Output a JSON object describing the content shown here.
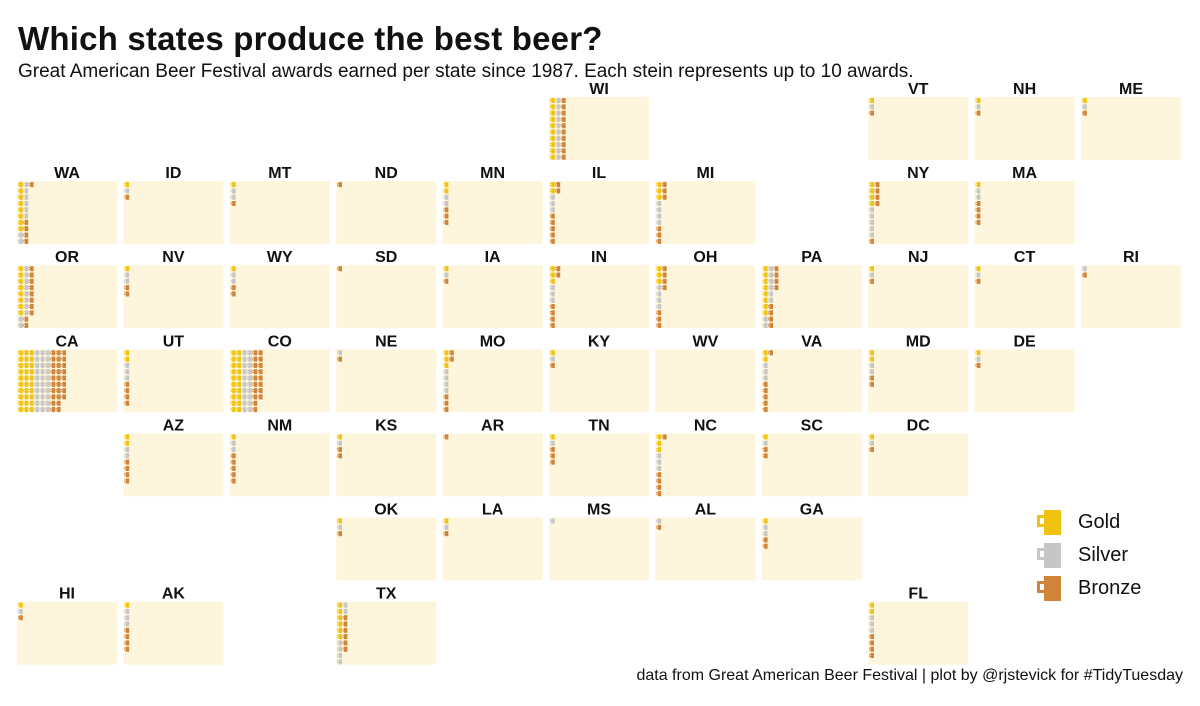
{
  "title": "Which states produce the best beer?",
  "subtitle": "Great American Beer Festival awards earned per state since 1987. Each stein represents up to 10 awards.",
  "caption": "data from Great American Beer Festival | plot by @rjstevick for #TidyTuesday",
  "colors": {
    "gold": "#f0c30f",
    "silver": "#c6c6c6",
    "bronze": "#d0843a",
    "tile": "#fef6dc",
    "stein_handle_hole": "#ffffff"
  },
  "legend": [
    {
      "key": "gold",
      "label": "Gold"
    },
    {
      "key": "silver",
      "label": "Silver"
    },
    {
      "key": "bronze",
      "label": "Bronze"
    }
  ],
  "chart_data": {
    "type": "waffle tile map",
    "unit": "steins (each up to 10 awards)",
    "medals": [
      "gold",
      "silver",
      "bronze"
    ],
    "states": [
      {
        "state": "WI",
        "row": 0,
        "col": 5,
        "gold": 10,
        "silver": 10,
        "bronze": 10
      },
      {
        "state": "VT",
        "row": 0,
        "col": 8,
        "gold": 1,
        "silver": 1,
        "bronze": 1
      },
      {
        "state": "NH",
        "row": 0,
        "col": 9,
        "gold": 1,
        "silver": 1,
        "bronze": 1
      },
      {
        "state": "ME",
        "row": 0,
        "col": 10,
        "gold": 1,
        "silver": 1,
        "bronze": 1
      },
      {
        "state": "WA",
        "row": 1,
        "col": 0,
        "gold": 8,
        "silver": 8,
        "bronze": 5
      },
      {
        "state": "ID",
        "row": 1,
        "col": 1,
        "gold": 1,
        "silver": 1,
        "bronze": 1
      },
      {
        "state": "MT",
        "row": 1,
        "col": 2,
        "gold": 1,
        "silver": 2,
        "bronze": 1
      },
      {
        "state": "ND",
        "row": 1,
        "col": 3,
        "gold": 0,
        "silver": 0,
        "bronze": 1
      },
      {
        "state": "MN",
        "row": 1,
        "col": 4,
        "gold": 2,
        "silver": 2,
        "bronze": 3
      },
      {
        "state": "IL",
        "row": 1,
        "col": 5,
        "gold": 2,
        "silver": 3,
        "bronze": 7
      },
      {
        "state": "MI",
        "row": 1,
        "col": 6,
        "gold": 3,
        "silver": 4,
        "bronze": 6
      },
      {
        "state": "NY",
        "row": 1,
        "col": 8,
        "gold": 4,
        "silver": 5,
        "bronze": 5
      },
      {
        "state": "MA",
        "row": 1,
        "col": 9,
        "gold": 1,
        "silver": 2,
        "bronze": 4
      },
      {
        "state": "OR",
        "row": 2,
        "col": 0,
        "gold": 8,
        "silver": 10,
        "bronze": 10
      },
      {
        "state": "NV",
        "row": 2,
        "col": 1,
        "gold": 1,
        "silver": 2,
        "bronze": 2
      },
      {
        "state": "WY",
        "row": 2,
        "col": 2,
        "gold": 1,
        "silver": 2,
        "bronze": 2
      },
      {
        "state": "SD",
        "row": 2,
        "col": 3,
        "gold": 0,
        "silver": 0,
        "bronze": 1
      },
      {
        "state": "IA",
        "row": 2,
        "col": 4,
        "gold": 1,
        "silver": 1,
        "bronze": 1
      },
      {
        "state": "IN",
        "row": 2,
        "col": 5,
        "gold": 3,
        "silver": 3,
        "bronze": 6
      },
      {
        "state": "OH",
        "row": 2,
        "col": 6,
        "gold": 3,
        "silver": 4,
        "bronze": 7
      },
      {
        "state": "PA",
        "row": 2,
        "col": 7,
        "gold": 8,
        "silver": 8,
        "bronze": 8
      },
      {
        "state": "NJ",
        "row": 2,
        "col": 8,
        "gold": 1,
        "silver": 1,
        "bronze": 1
      },
      {
        "state": "CT",
        "row": 2,
        "col": 9,
        "gold": 1,
        "silver": 1,
        "bronze": 1
      },
      {
        "state": "RI",
        "row": 2,
        "col": 10,
        "gold": 0,
        "silver": 1,
        "bronze": 1
      },
      {
        "state": "CA",
        "row": 3,
        "col": 0,
        "gold": 30,
        "silver": 30,
        "bronze": 28
      },
      {
        "state": "UT",
        "row": 3,
        "col": 1,
        "gold": 2,
        "silver": 3,
        "bronze": 4
      },
      {
        "state": "CO",
        "row": 3,
        "col": 2,
        "gold": 20,
        "silver": 20,
        "bronze": 18
      },
      {
        "state": "NE",
        "row": 3,
        "col": 3,
        "gold": 0,
        "silver": 1,
        "bronze": 1
      },
      {
        "state": "MO",
        "row": 3,
        "col": 4,
        "gold": 3,
        "silver": 4,
        "bronze": 5
      },
      {
        "state": "KY",
        "row": 3,
        "col": 5,
        "gold": 1,
        "silver": 1,
        "bronze": 1
      },
      {
        "state": "WV",
        "row": 3,
        "col": 6,
        "gold": 0,
        "silver": 0,
        "bronze": 0
      },
      {
        "state": "VA",
        "row": 3,
        "col": 7,
        "gold": 2,
        "silver": 3,
        "bronze": 6
      },
      {
        "state": "MD",
        "row": 3,
        "col": 8,
        "gold": 2,
        "silver": 2,
        "bronze": 2
      },
      {
        "state": "DE",
        "row": 3,
        "col": 9,
        "gold": 1,
        "silver": 1,
        "bronze": 1
      },
      {
        "state": "AZ",
        "row": 4,
        "col": 1,
        "gold": 2,
        "silver": 2,
        "bronze": 4
      },
      {
        "state": "NM",
        "row": 4,
        "col": 2,
        "gold": 1,
        "silver": 2,
        "bronze": 5
      },
      {
        "state": "KS",
        "row": 4,
        "col": 3,
        "gold": 1,
        "silver": 1,
        "bronze": 2
      },
      {
        "state": "AR",
        "row": 4,
        "col": 4,
        "gold": 0,
        "silver": 0,
        "bronze": 1
      },
      {
        "state": "TN",
        "row": 4,
        "col": 5,
        "gold": 1,
        "silver": 1,
        "bronze": 3
      },
      {
        "state": "NC",
        "row": 4,
        "col": 6,
        "gold": 3,
        "silver": 3,
        "bronze": 5
      },
      {
        "state": "SC",
        "row": 4,
        "col": 7,
        "gold": 1,
        "silver": 1,
        "bronze": 2
      },
      {
        "state": "DC",
        "row": 4,
        "col": 8,
        "gold": 1,
        "silver": 1,
        "bronze": 1
      },
      {
        "state": "OK",
        "row": 5,
        "col": 3,
        "gold": 1,
        "silver": 1,
        "bronze": 1
      },
      {
        "state": "LA",
        "row": 5,
        "col": 4,
        "gold": 1,
        "silver": 1,
        "bronze": 1
      },
      {
        "state": "MS",
        "row": 5,
        "col": 5,
        "gold": 0,
        "silver": 1,
        "bronze": 0
      },
      {
        "state": "AL",
        "row": 5,
        "col": 6,
        "gold": 0,
        "silver": 1,
        "bronze": 1
      },
      {
        "state": "GA",
        "row": 5,
        "col": 7,
        "gold": 1,
        "silver": 2,
        "bronze": 2
      },
      {
        "state": "HI",
        "row": 6,
        "col": 0,
        "gold": 1,
        "silver": 1,
        "bronze": 1
      },
      {
        "state": "AK",
        "row": 6,
        "col": 1,
        "gold": 1,
        "silver": 3,
        "bronze": 4
      },
      {
        "state": "TX",
        "row": 6,
        "col": 3,
        "gold": 6,
        "silver": 6,
        "bronze": 6
      },
      {
        "state": "FL",
        "row": 6,
        "col": 8,
        "gold": 2,
        "silver": 3,
        "bronze": 4
      }
    ]
  }
}
